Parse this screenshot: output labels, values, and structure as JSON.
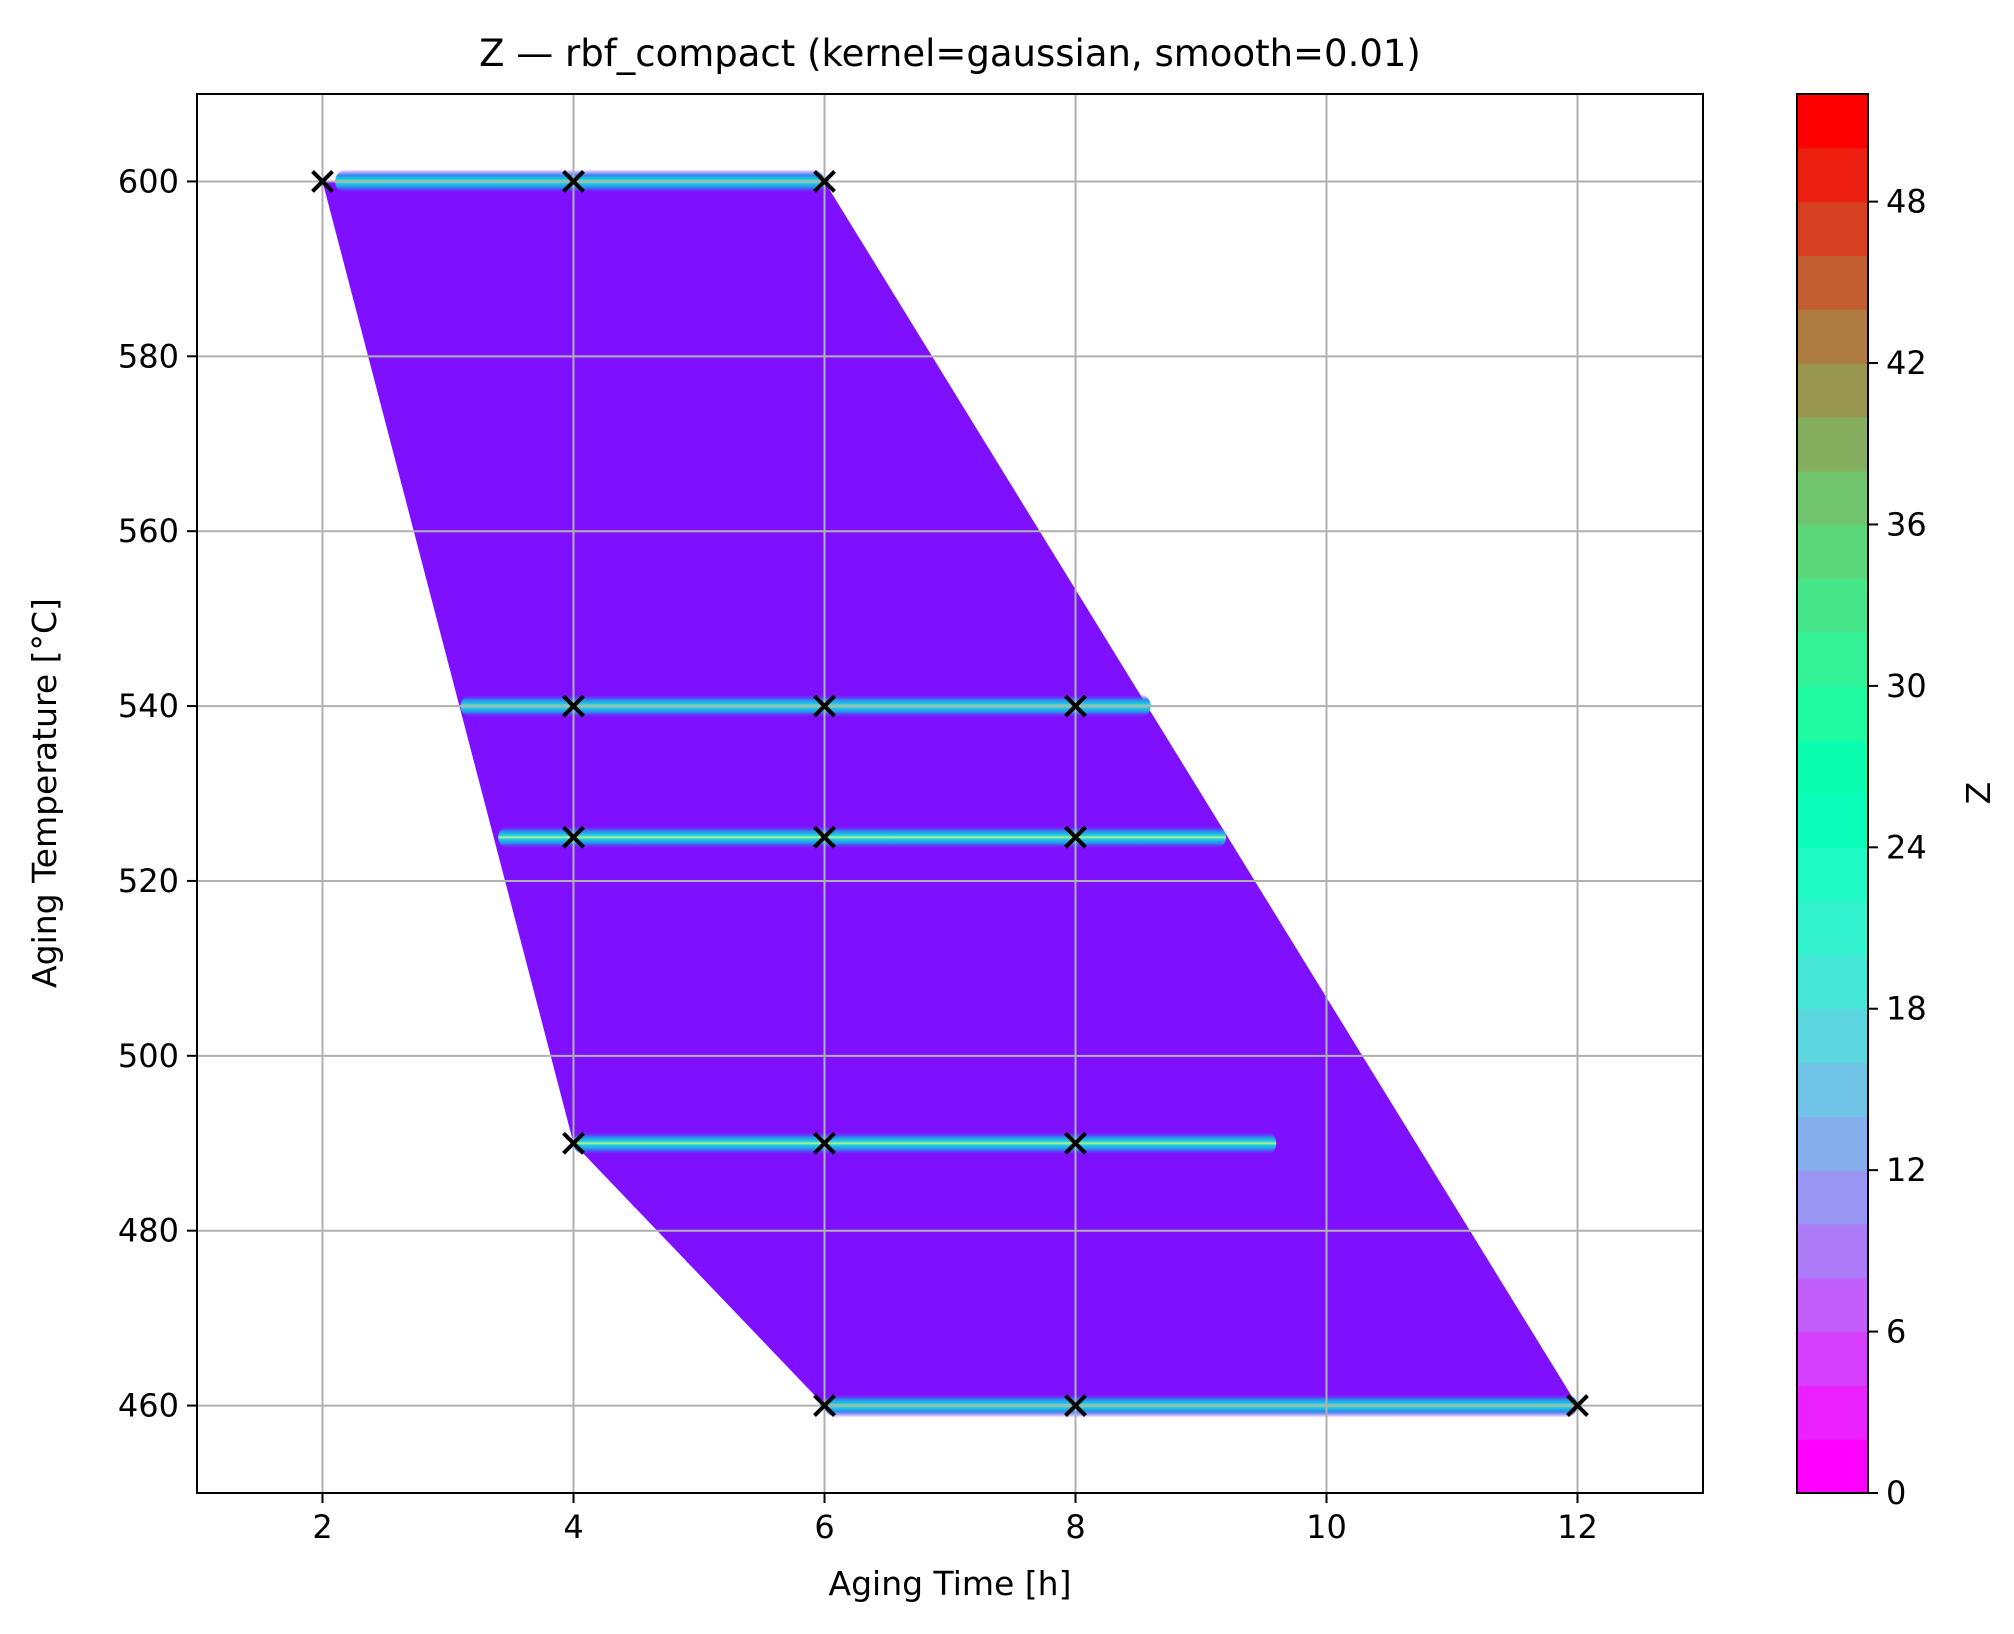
{
  "chart_data": {
    "type": "contour",
    "title": "Z — rbf_compact (kernel=gaussian, smooth=0.01)",
    "xlabel": "Aging Time [h]",
    "ylabel": "Aging Temperature [°C]",
    "colorbar_label": "Z",
    "xlim": [
      1,
      13
    ],
    "ylim": [
      450,
      610
    ],
    "xticks": [
      2,
      4,
      6,
      8,
      10,
      12
    ],
    "yticks": [
      460,
      480,
      500,
      520,
      540,
      560,
      580,
      600
    ],
    "zlim": [
      0,
      52
    ],
    "colorbar_ticks": [
      0,
      6,
      12,
      18,
      24,
      30,
      36,
      42,
      48
    ],
    "colormap": "rainbow",
    "levels": 26,
    "grid": true,
    "background_value": 0,
    "background_color": "#7f0fff",
    "domain_polygon": [
      [
        2,
        600
      ],
      [
        6,
        600
      ],
      [
        12,
        460
      ],
      [
        6,
        460
      ],
      [
        4,
        490
      ],
      [
        2,
        600
      ]
    ],
    "ridges": [
      {
        "y": 600,
        "x_start": 2.1,
        "x_end": 6.0,
        "peak_z": 30
      },
      {
        "y": 540,
        "x_start": 3.1,
        "x_end": 8.6,
        "peak_z": 22
      },
      {
        "y": 525,
        "x_start": 3.4,
        "x_end": 9.2,
        "peak_z": 22
      },
      {
        "y": 490,
        "x_start": 4.0,
        "x_end": 9.6,
        "peak_z": 24
      },
      {
        "y": 460,
        "x_start": 6.0,
        "x_end": 12.0,
        "peak_z": 20
      }
    ],
    "samples": [
      {
        "x": 2,
        "y": 600
      },
      {
        "x": 4,
        "y": 600
      },
      {
        "x": 6,
        "y": 600
      },
      {
        "x": 4,
        "y": 540
      },
      {
        "x": 6,
        "y": 540
      },
      {
        "x": 8,
        "y": 540
      },
      {
        "x": 4,
        "y": 525
      },
      {
        "x": 6,
        "y": 525
      },
      {
        "x": 8,
        "y": 525
      },
      {
        "x": 4,
        "y": 490
      },
      {
        "x": 6,
        "y": 490
      },
      {
        "x": 8,
        "y": 490
      },
      {
        "x": 6,
        "y": 460
      },
      {
        "x": 8,
        "y": 460
      },
      {
        "x": 12,
        "y": 460
      }
    ],
    "marker": "x",
    "marker_color": "#000000"
  }
}
